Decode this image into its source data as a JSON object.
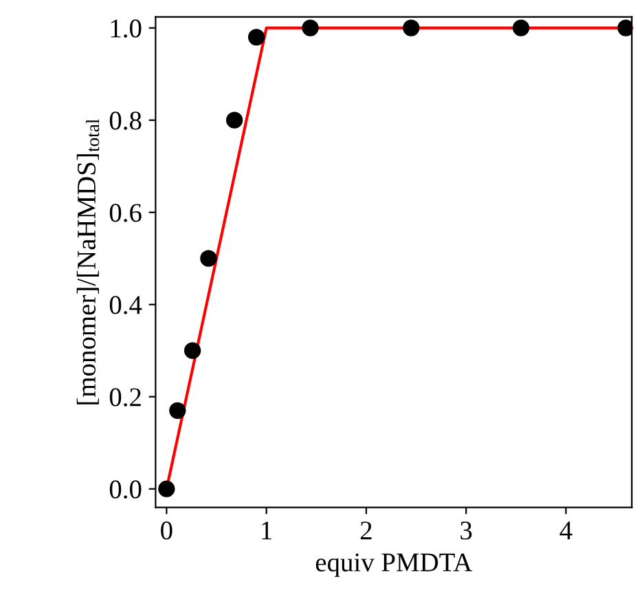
{
  "chart_data": {
    "type": "scatter",
    "xlabel": "equiv PMDTA",
    "ylabel": "[monomer]/[NaHMDS]$_{total}$",
    "xlim": [
      -0.11,
      4.66
    ],
    "ylim": [
      -0.04,
      1.024
    ],
    "xticks": [
      0,
      1,
      2,
      3,
      4
    ],
    "yticks": [
      {
        "value": 0,
        "label": "0.0"
      },
      0.2,
      0.4,
      0.6,
      0.8,
      {
        "value": 1,
        "label": "1.0"
      }
    ],
    "grid": false,
    "legend": false,
    "marker": "circle",
    "series": [
      {
        "color": "#000000",
        "x": [
          0,
          0.11,
          0.26,
          0.42,
          0.68,
          0.9,
          1.44,
          2.45,
          3.55,
          4.6
        ],
        "values": [
          0,
          0.17,
          0.3,
          0.5,
          0.8,
          0.98,
          1.0,
          1.0,
          1.0,
          1.0
        ]
      },
      {
        "type": "line",
        "color": "#ff0000",
        "marker": "none",
        "line_style": "solid",
        "x": [
          0,
          1,
          4.66
        ],
        "values": [
          0,
          1,
          1
        ]
      }
    ]
  }
}
